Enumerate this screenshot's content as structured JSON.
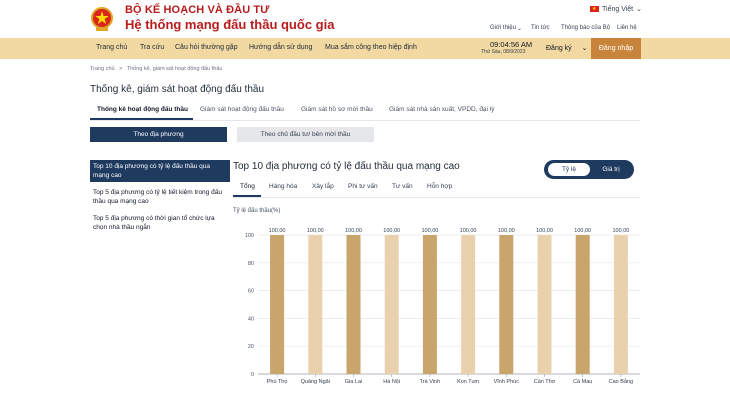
{
  "header": {
    "org_line1": "BỘ KẾ HOẠCH VÀ ĐẦU TƯ",
    "org_line2": "Hệ thống mạng đấu thầu quốc gia",
    "language": "Tiếng Việt",
    "links": [
      "Giới thiệu",
      "Tin tức",
      "Thông báo của Bộ",
      "Liên hệ"
    ]
  },
  "nav": {
    "items": [
      "Trang chủ",
      "Tra cứu",
      "Câu hỏi thường gặp",
      "Hướng dẫn sử dụng",
      "Mua sắm công theo hiệp định"
    ],
    "clock": "09:04:56 AM",
    "date": "Thứ Sáu, 08/9/2023",
    "register": "Đăng ký",
    "login": "Đăng nhập"
  },
  "breadcrumb": {
    "home": "Trang chủ",
    "separator": ">",
    "current": "Thống kê, giám sát hoạt động đấu thầu"
  },
  "page": {
    "title": "Thống kê, giám sát hoạt động đấu thầu",
    "tabs": [
      "Thống kê hoạt động đấu thầu",
      "Giám sát hoạt động đấu thầu",
      "Giám sát hồ sơ mời thầu",
      "Giám sát nhà sản xuất, VPDD, đại lý"
    ],
    "sub_buttons": [
      "Theo địa phương",
      "Theo chủ đầu tư/ bên mời thầu"
    ]
  },
  "left_panel": {
    "items": [
      "Top 10 địa phương có tỷ lệ đấu thầu qua mạng cao",
      "Top 5 địa phương có tỷ lệ tiết kiệm trong đấu thầu qua mạng cao",
      "Top 5 địa phương có thời gian tổ chức lựa chọn nhà thầu ngắn"
    ]
  },
  "chart_panel": {
    "title": "Top 10 địa phương có tỷ lệ đấu thầu qua mạng cao",
    "toggle": [
      "Tỷ lệ",
      "Giá trị"
    ],
    "tabs": [
      "Tổng",
      "Hàng hóa",
      "Xây lắp",
      "Phi tư vấn",
      "Tư vấn",
      "Hỗn hợp"
    ]
  },
  "colors": {
    "navy": "#1e3a5f",
    "brand_red": "#b91c1c",
    "nav_bg": "#f2d9a2",
    "login_bg": "#c8843a",
    "bar_dark": "#c9a46b",
    "bar_light": "#e9d1ad"
  },
  "chart_data": {
    "type": "bar",
    "title": "Top 10 địa phương có tỷ lệ đấu thầu qua mạng cao",
    "ylabel": "Tỷ lệ đấu thầu(%)",
    "xlabel": "",
    "ylim": [
      0,
      100
    ],
    "yticks": [
      0,
      20,
      40,
      60,
      80,
      100
    ],
    "categories": [
      "Phú Thọ",
      "Quảng Ngãi",
      "Gia Lai",
      "Hà Nội",
      "Trà Vinh",
      "Kon Tum",
      "Vĩnh Phúc",
      "Cần Thơ",
      "Cà Mau",
      "Cao Bằng"
    ],
    "values": [
      100,
      100,
      100,
      100,
      100,
      100,
      100,
      100,
      100,
      100
    ],
    "value_labels": [
      "100,00",
      "100,00",
      "100,00",
      "100,00",
      "100,00",
      "100,00",
      "100,00",
      "100,00",
      "100,00",
      "100,00"
    ],
    "grid": "horizontal",
    "legend": "none"
  }
}
